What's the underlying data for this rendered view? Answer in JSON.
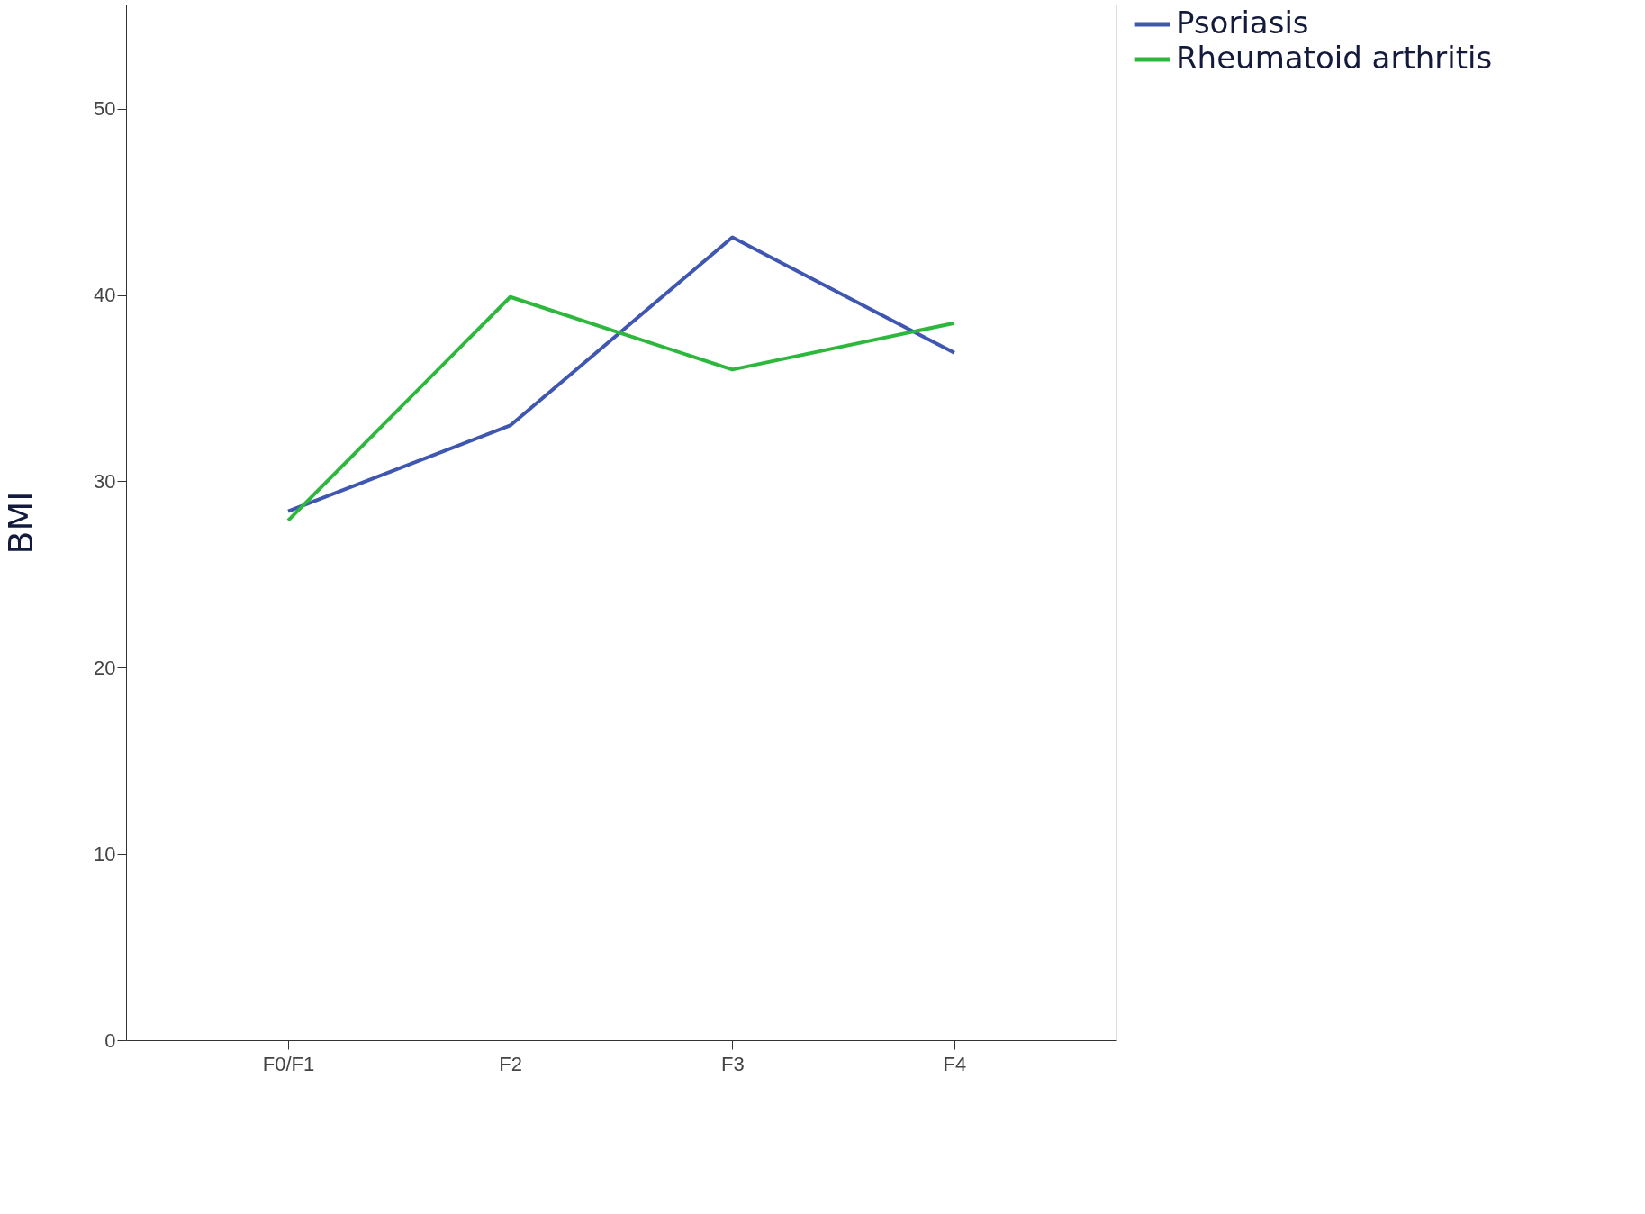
{
  "chart_data": {
    "type": "line",
    "ylabel": "BMI",
    "categories": [
      "F0/F1",
      "F2",
      "F3",
      "F4"
    ],
    "series": [
      {
        "name": "Psoriasis",
        "color": "#3f57b0",
        "values": [
          28.4,
          33.0,
          43.1,
          36.9
        ]
      },
      {
        "name": "Rheumatoid arthritis",
        "color": "#2db83d",
        "values": [
          27.9,
          39.9,
          36.0,
          38.5
        ]
      }
    ],
    "ylim": [
      0,
      55.6
    ],
    "yticks": [
      0,
      10,
      20,
      30,
      40,
      50
    ],
    "legend": "top right"
  }
}
